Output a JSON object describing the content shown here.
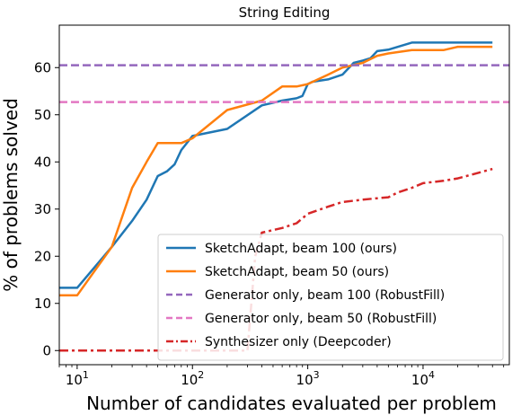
{
  "chart_data": {
    "type": "line",
    "title": "String Editing",
    "xlabel": "Number of candidates evaluated per problem",
    "ylabel": "% of problems solved",
    "xscale": "log",
    "xlim": [
      7,
      56000
    ],
    "ylim": [
      -3,
      69
    ],
    "yticks": [
      0,
      10,
      20,
      30,
      40,
      50,
      60
    ],
    "xticks": [
      {
        "value": 10,
        "base": "10",
        "exp": "1"
      },
      {
        "value": 100,
        "base": "10",
        "exp": "2"
      },
      {
        "value": 1000,
        "base": "10",
        "exp": "3"
      },
      {
        "value": 10000,
        "base": "10",
        "exp": "4"
      }
    ],
    "grid": false,
    "legend_position": "lower-right",
    "series": [
      {
        "name": "SketchAdapt, beam 100 (ours)",
        "color": "#1f77b4",
        "style": "solid",
        "x": [
          7,
          10,
          20,
          30,
          40,
          50,
          60,
          70,
          80,
          100,
          200,
          400,
          600,
          800,
          900,
          1000,
          1100,
          1500,
          2000,
          2500,
          3000,
          3500,
          4000,
          5000,
          8000,
          10000,
          40000
        ],
        "y": [
          13.3,
          13.3,
          22,
          27.5,
          32,
          37,
          38,
          39.5,
          42.5,
          45.5,
          47,
          52,
          53,
          53.5,
          54,
          56.5,
          57,
          57.5,
          58.5,
          61,
          61.5,
          62,
          63.5,
          63.8,
          65.3,
          65.3,
          65.3
        ]
      },
      {
        "name": "SketchAdapt, beam 50 (ours)",
        "color": "#ff7f0e",
        "style": "solid",
        "x": [
          7,
          10,
          20,
          30,
          40,
          50,
          60,
          80,
          100,
          200,
          400,
          600,
          800,
          1000,
          1500,
          2000,
          3000,
          4000,
          5000,
          8000,
          10000,
          15000,
          20000,
          40000
        ],
        "y": [
          11.7,
          11.7,
          22,
          34.5,
          40,
          44,
          44,
          44,
          45,
          51,
          53,
          56,
          56,
          56.5,
          58.5,
          60,
          61,
          62.5,
          63,
          63.7,
          63.7,
          63.7,
          64.4,
          64.4
        ]
      },
      {
        "name": "Generator only, beam 100 (RobustFill)",
        "color": "#9467bd",
        "style": "dashed",
        "x": [
          7,
          56000
        ],
        "y": [
          60.5,
          60.5
        ]
      },
      {
        "name": "Generator only, beam 50 (RobustFill)",
        "color": "#e377c2",
        "style": "dashed",
        "x": [
          7,
          56000
        ],
        "y": [
          52.7,
          52.7
        ]
      },
      {
        "name": "Synthesizer only (Deepcoder)",
        "color": "#d62728",
        "style": "dashdot",
        "x": [
          7,
          10,
          50,
          70,
          100,
          150,
          200,
          300,
          350,
          400,
          600,
          800,
          1000,
          1500,
          2000,
          3000,
          4000,
          5000,
          6000,
          8000,
          10000,
          15000,
          20000,
          40000
        ],
        "y": [
          0,
          0,
          0,
          0,
          0,
          0,
          0,
          0,
          20,
          25,
          26,
          27,
          29,
          30.5,
          31.5,
          32,
          32.3,
          32.5,
          33.5,
          34.5,
          35.5,
          36,
          36.5,
          38.5
        ]
      }
    ]
  }
}
